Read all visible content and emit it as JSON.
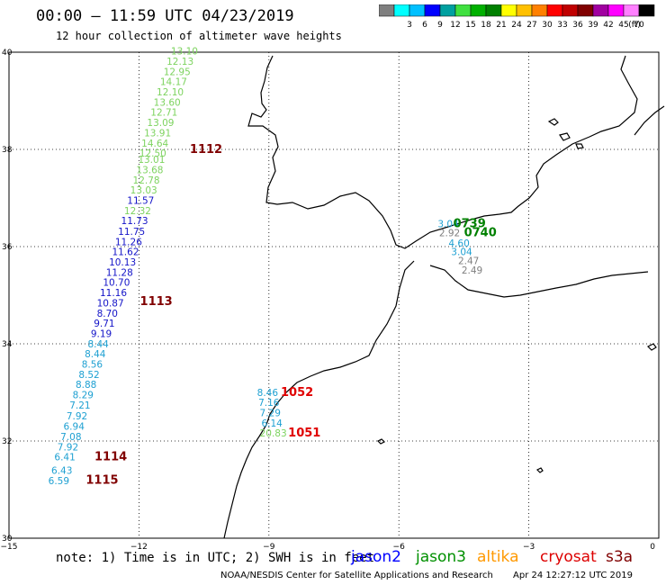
{
  "header": {
    "title": "00:00 – 11:59 UTC 04/23/2019",
    "subtitle": "12 hour collection of altimeter wave heights"
  },
  "legend": {
    "unit_label": "(ft)",
    "bins": [
      {
        "label": "",
        "color": "#7f7f7f"
      },
      {
        "label": "3",
        "color": "#00ffff"
      },
      {
        "label": "6",
        "color": "#00c0ff"
      },
      {
        "label": "9",
        "color": "#0000ff"
      },
      {
        "label": "12",
        "color": "#00a0a0"
      },
      {
        "label": "15",
        "color": "#40e040"
      },
      {
        "label": "18",
        "color": "#00b000"
      },
      {
        "label": "21",
        "color": "#008000"
      },
      {
        "label": "24",
        "color": "#ffff00"
      },
      {
        "label": "27",
        "color": "#ffc000"
      },
      {
        "label": "30",
        "color": "#ff8000"
      },
      {
        "label": "33",
        "color": "#ff0000"
      },
      {
        "label": "36",
        "color": "#c00000"
      },
      {
        "label": "39",
        "color": "#800000"
      },
      {
        "label": "42",
        "color": "#a000a0"
      },
      {
        "label": "45",
        "color": "#ff00ff"
      },
      {
        "label": "70",
        "color": "#ff80ff"
      },
      {
        "label": "",
        "color": "#000000"
      }
    ]
  },
  "axes": {
    "lat_labels": [
      "40",
      "38",
      "36",
      "34",
      "32",
      "30"
    ],
    "lat_values": [
      40,
      38,
      36,
      34,
      32,
      30
    ],
    "lon_labels": [
      "−15",
      "−12",
      "−9",
      "−6",
      "−3",
      "0"
    ],
    "lon_values": [
      -15,
      -12,
      -9,
      -6,
      -3,
      0
    ]
  },
  "readings": [
    {
      "text": "13.10",
      "lat": 39.95,
      "lon": -10.95,
      "color": "#7dd35f"
    },
    {
      "text": "12.13",
      "lat": 39.74,
      "lon": -11.05,
      "color": "#7dd35f"
    },
    {
      "text": "12.95",
      "lat": 39.53,
      "lon": -11.12,
      "color": "#7dd35f"
    },
    {
      "text": "14.17",
      "lat": 39.32,
      "lon": -11.2,
      "color": "#7dd35f"
    },
    {
      "text": "12.10",
      "lat": 39.11,
      "lon": -11.28,
      "color": "#7dd35f"
    },
    {
      "text": "13.60",
      "lat": 38.9,
      "lon": -11.35,
      "color": "#7dd35f"
    },
    {
      "text": "12.71",
      "lat": 38.69,
      "lon": -11.42,
      "color": "#7dd35f"
    },
    {
      "text": "13.09",
      "lat": 38.48,
      "lon": -11.5,
      "color": "#7dd35f"
    },
    {
      "text": "13.91",
      "lat": 38.27,
      "lon": -11.57,
      "color": "#7dd35f"
    },
    {
      "text": "14.64",
      "lat": 38.06,
      "lon": -11.63,
      "color": "#7dd35f"
    },
    {
      "text": "12.50",
      "lat": 37.85,
      "lon": -11.68,
      "color": "#7dd35f"
    },
    {
      "text": "13.01",
      "lat": 37.72,
      "lon": -11.71,
      "color": "#7dd35f"
    },
    {
      "text": "13.68",
      "lat": 37.51,
      "lon": -11.75,
      "color": "#7dd35f"
    },
    {
      "text": "12.78",
      "lat": 37.3,
      "lon": -11.83,
      "color": "#7dd35f"
    },
    {
      "text": "13.03",
      "lat": 37.09,
      "lon": -11.89,
      "color": "#7dd35f"
    },
    {
      "text": "11.57",
      "lat": 36.88,
      "lon": -11.96,
      "color": "#1414c8"
    },
    {
      "text": "12.32",
      "lat": 36.67,
      "lon": -12.03,
      "color": "#7dd35f"
    },
    {
      "text": "11.73",
      "lat": 36.46,
      "lon": -12.1,
      "color": "#1414c8"
    },
    {
      "text": "11.75",
      "lat": 36.24,
      "lon": -12.17,
      "color": "#1414c8"
    },
    {
      "text": "11.26",
      "lat": 36.03,
      "lon": -12.24,
      "color": "#1414c8"
    },
    {
      "text": "11.62",
      "lat": 35.82,
      "lon": -12.31,
      "color": "#1414c8"
    },
    {
      "text": "10.13",
      "lat": 35.61,
      "lon": -12.38,
      "color": "#1414c8"
    },
    {
      "text": "11.28",
      "lat": 35.4,
      "lon": -12.45,
      "color": "#1414c8"
    },
    {
      "text": "10.70",
      "lat": 35.19,
      "lon": -12.52,
      "color": "#1414c8"
    },
    {
      "text": "11.16",
      "lat": 34.98,
      "lon": -12.59,
      "color": "#1414c8"
    },
    {
      "text": "10.87",
      "lat": 34.77,
      "lon": -12.66,
      "color": "#1414c8"
    },
    {
      "text": "8.70",
      "lat": 34.56,
      "lon": -12.73,
      "color": "#1414c8"
    },
    {
      "text": "9.71",
      "lat": 34.35,
      "lon": -12.8,
      "color": "#1414c8"
    },
    {
      "text": "9.19",
      "lat": 34.14,
      "lon": -12.87,
      "color": "#1414c8"
    },
    {
      "text": "8.44",
      "lat": 33.93,
      "lon": -12.94,
      "color": "#1ea0d2"
    },
    {
      "text": "8.44",
      "lat": 33.72,
      "lon": -13.01,
      "color": "#1ea0d2"
    },
    {
      "text": "8.56",
      "lat": 33.51,
      "lon": -13.08,
      "color": "#1ea0d2"
    },
    {
      "text": "8.52",
      "lat": 33.3,
      "lon": -13.15,
      "color": "#1ea0d2"
    },
    {
      "text": "8.88",
      "lat": 33.09,
      "lon": -13.22,
      "color": "#1ea0d2"
    },
    {
      "text": "8.29",
      "lat": 32.88,
      "lon": -13.29,
      "color": "#1ea0d2"
    },
    {
      "text": "7.21",
      "lat": 32.67,
      "lon": -13.36,
      "color": "#1ea0d2"
    },
    {
      "text": "7.92",
      "lat": 32.44,
      "lon": -13.43,
      "color": "#1ea0d2"
    },
    {
      "text": "6.94",
      "lat": 32.23,
      "lon": -13.5,
      "color": "#1ea0d2"
    },
    {
      "text": "7.08",
      "lat": 32.02,
      "lon": -13.57,
      "color": "#1ea0d2"
    },
    {
      "text": "7.92",
      "lat": 31.81,
      "lon": -13.64,
      "color": "#1ea0d2"
    },
    {
      "text": "6.41",
      "lat": 31.6,
      "lon": -13.71,
      "color": "#1ea0d2"
    },
    {
      "text": "6.43",
      "lat": 31.32,
      "lon": -13.78,
      "color": "#1ea0d2"
    },
    {
      "text": "6.59",
      "lat": 31.11,
      "lon": -13.85,
      "color": "#1ea0d2"
    },
    {
      "text": "8.46",
      "lat": 32.93,
      "lon": -9.03,
      "color": "#1ea0d2"
    },
    {
      "text": "7.16",
      "lat": 32.72,
      "lon": -9.0,
      "color": "#1ea0d2"
    },
    {
      "text": "7.29",
      "lat": 32.51,
      "lon": -8.97,
      "color": "#1ea0d2"
    },
    {
      "text": "6.14",
      "lat": 32.3,
      "lon": -8.93,
      "color": "#1ea0d2"
    },
    {
      "text": "20.83",
      "lat": 32.09,
      "lon": -8.9,
      "color": "#7dd35f"
    },
    {
      "text": "3.04",
      "lat": 36.4,
      "lon": -4.86,
      "color": "#1ea0d2"
    },
    {
      "text": "2.92",
      "lat": 36.21,
      "lon": -4.83,
      "color": "#808080"
    },
    {
      "text": "4.60",
      "lat": 36.0,
      "lon": -4.61,
      "color": "#1ea0d2"
    },
    {
      "text": "3.04",
      "lat": 35.82,
      "lon": -4.55,
      "color": "#1ea0d2"
    },
    {
      "text": "2.47",
      "lat": 35.64,
      "lon": -4.39,
      "color": "#808080"
    },
    {
      "text": "2.49",
      "lat": 35.44,
      "lon": -4.31,
      "color": "#808080"
    }
  ],
  "pass_labels": [
    {
      "text": "1112",
      "lat": 37.93,
      "lon": -10.45,
      "color": "#800000"
    },
    {
      "text": "1113",
      "lat": 34.8,
      "lon": -11.6,
      "color": "#800000"
    },
    {
      "text": "1114",
      "lat": 31.6,
      "lon": -12.65,
      "color": "#800000"
    },
    {
      "text": "1115",
      "lat": 31.12,
      "lon": -12.85,
      "color": "#800000"
    },
    {
      "text": "1052",
      "lat": 32.93,
      "lon": -8.35,
      "color": "#e00000"
    },
    {
      "text": "1051",
      "lat": 32.09,
      "lon": -8.18,
      "color": "#e00000"
    },
    {
      "text": "0739",
      "lat": 36.4,
      "lon": -4.37,
      "color": "#008000"
    },
    {
      "text": "0740",
      "lat": 36.21,
      "lon": -4.12,
      "color": "#008000"
    }
  ],
  "footer": {
    "note": "note: 1) Time is in UTC; 2) SWH is in feet",
    "satellites": [
      {
        "name": "jason2",
        "color": "#0000ff"
      },
      {
        "name": "jason3",
        "color": "#009000"
      },
      {
        "name": "altika",
        "color": "#ff9900"
      },
      {
        "name": "cryosat",
        "color": "#dd0000"
      },
      {
        "name": "s3a",
        "color": "#800000"
      }
    ],
    "credit": "NOAA/NESDIS Center for Satellite Applications and Research",
    "timestamp": "Apr 24 12:27:12 UTC 2019"
  },
  "colors": {
    "coast": "#000000",
    "grid": "#000000",
    "background": "#ffffff"
  }
}
